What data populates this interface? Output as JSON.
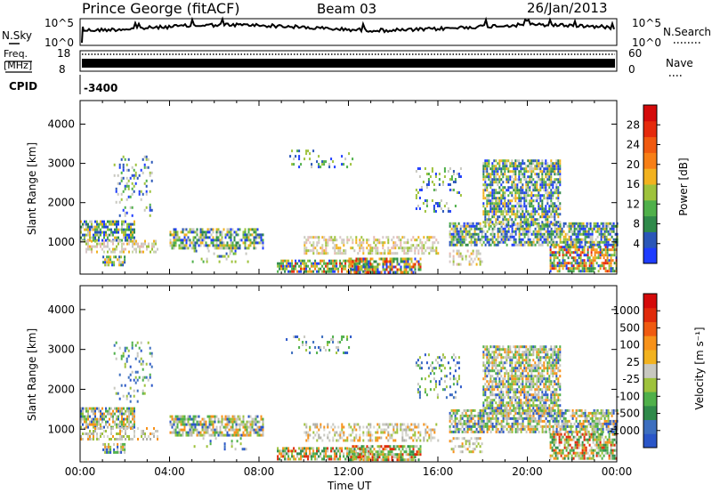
{
  "header": {
    "station": "Prince George (fitACF)",
    "beam": "Beam 03",
    "date": "26/Jan/2013"
  },
  "summary_panel": {
    "nsky_label": "N.Sky",
    "nsky_ticks": [
      "10^5",
      "10^0"
    ],
    "nsearch_label": "N.Search",
    "nsearch_ticks": [
      "10^5",
      "10^0"
    ],
    "freq_label_line1": "Freq.",
    "freq_label_line2": "[MHz]",
    "freq_ticks": [
      "18",
      "8"
    ],
    "nave_label": "Nave",
    "nave_ticks": [
      "60",
      "0"
    ],
    "cpid_label": "CPID",
    "cpid_value": "-3400"
  },
  "chart_data": [
    {
      "type": "heatmap",
      "name": "power",
      "xlabel": "",
      "ylabel": "Slant Range [km]",
      "xlim": [
        0,
        24
      ],
      "ylim": [
        180,
        4600
      ],
      "y_ticks": [
        "1000",
        "2000",
        "3000",
        "4000"
      ],
      "colorbar": {
        "label": "Power [dB]",
        "ticks": [
          "4",
          "8",
          "12",
          "16",
          "20",
          "24",
          "28"
        ],
        "colors": [
          "#1e3cff",
          "#2a56b8",
          "#2f8a4a",
          "#4fb04a",
          "#9ec23c",
          "#f2b21f",
          "#f77f16",
          "#f05a10",
          "#e52a0c",
          "#d40a0a"
        ]
      }
    },
    {
      "type": "heatmap",
      "name": "velocity",
      "xlabel": "Time UT",
      "ylabel": "Slant Range [km]",
      "xlim": [
        0,
        24
      ],
      "ylim": [
        180,
        4600
      ],
      "x_ticks": [
        "00:00",
        "04:00",
        "08:00",
        "12:00",
        "16:00",
        "20:00",
        "00:00"
      ],
      "y_ticks": [
        "1000",
        "2000",
        "3000",
        "4000"
      ],
      "colorbar": {
        "label": "Velocity [m s⁻¹]",
        "ticks": [
          "1000",
          "500",
          "100",
          "25",
          "-25",
          "-100",
          "-500",
          "-1000"
        ],
        "colors": [
          "#2a56c8",
          "#3d6fbf",
          "#2f8a4a",
          "#4fb04a",
          "#9ec23c",
          "#c8c8c0",
          "#f2b21f",
          "#f7921a",
          "#f05a10",
          "#e02a0a",
          "#d40a0a"
        ]
      }
    }
  ],
  "echo_regions": [
    {
      "t0": 0.0,
      "t1": 2.4,
      "r0": 1050,
      "r1": 1550,
      "kind": "mix"
    },
    {
      "t0": 0.0,
      "t1": 3.5,
      "r0": 750,
      "r1": 1050,
      "kind": "weak"
    },
    {
      "t0": 1.0,
      "t1": 2.0,
      "r0": 420,
      "r1": 650,
      "kind": "mix"
    },
    {
      "t0": 1.5,
      "t1": 3.2,
      "r0": 1700,
      "r1": 3200,
      "kind": "sparse"
    },
    {
      "t0": 4.0,
      "t1": 8.2,
      "r0": 850,
      "r1": 1350,
      "kind": "mix"
    },
    {
      "t0": 5.0,
      "t1": 7.5,
      "r0": 500,
      "r1": 800,
      "kind": "sparse"
    },
    {
      "t0": 8.8,
      "t1": 13.0,
      "r0": 250,
      "r1": 550,
      "kind": "strong"
    },
    {
      "t0": 9.2,
      "t1": 12.2,
      "r0": 2900,
      "r1": 3350,
      "kind": "sparse"
    },
    {
      "t0": 10.0,
      "t1": 16.0,
      "r0": 700,
      "r1": 1150,
      "kind": "weak"
    },
    {
      "t0": 12.0,
      "t1": 15.2,
      "r0": 250,
      "r1": 600,
      "kind": "strong"
    },
    {
      "t0": 15.0,
      "t1": 17.0,
      "r0": 1800,
      "r1": 2900,
      "kind": "sparse"
    },
    {
      "t0": 16.5,
      "t1": 24.0,
      "r0": 900,
      "r1": 1500,
      "kind": "mix"
    },
    {
      "t0": 18.0,
      "t1": 21.5,
      "r0": 1400,
      "r1": 3100,
      "kind": "mix"
    },
    {
      "t0": 21.0,
      "t1": 24.0,
      "r0": 250,
      "r1": 900,
      "kind": "strong"
    },
    {
      "t0": 16.5,
      "t1": 18.0,
      "r0": 450,
      "r1": 800,
      "kind": "weak"
    }
  ]
}
